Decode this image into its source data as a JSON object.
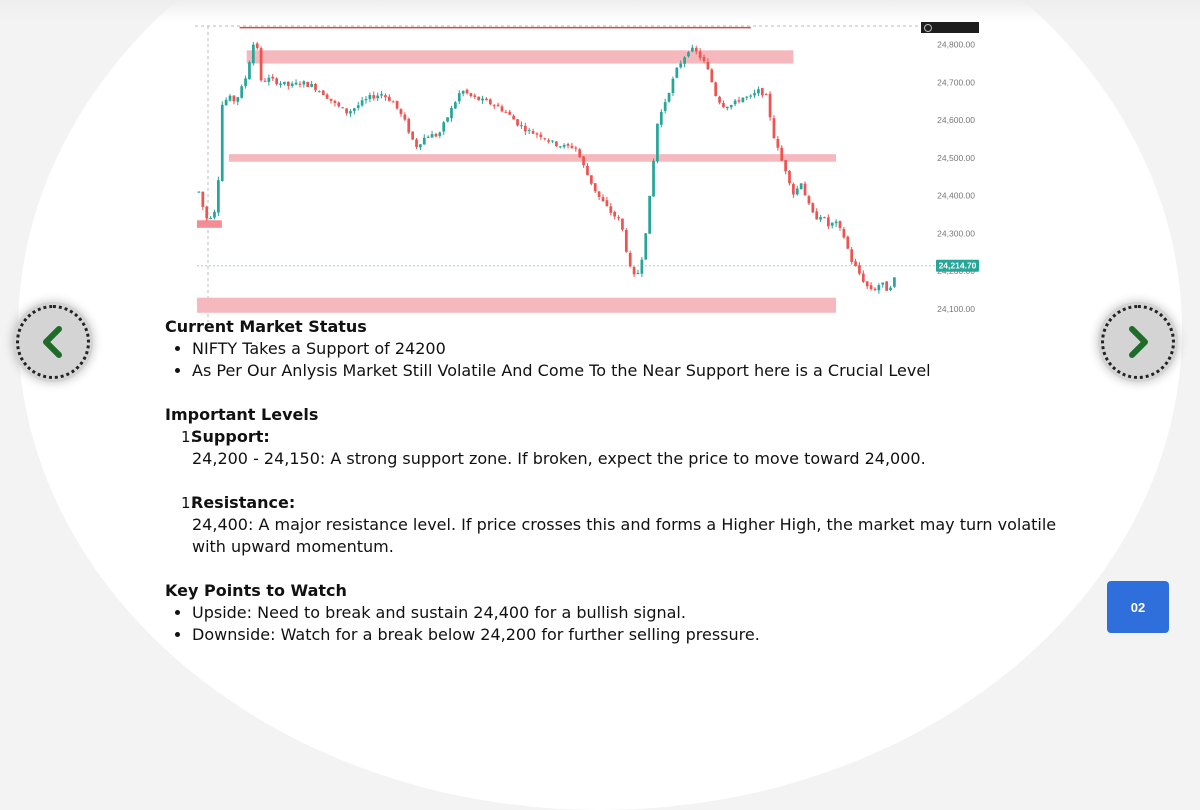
{
  "chart_data": {
    "type": "candlestick",
    "price_labels": [
      "24,800.00",
      "24,700.00",
      "24,600.00",
      "24,500.00",
      "24,400.00",
      "24,300.00",
      "24,200.00",
      "24,100.00"
    ],
    "price_ticks": [
      24800,
      24700,
      24600,
      24500,
      24400,
      24300,
      24200,
      24100
    ],
    "last_price": "24,214.70",
    "last_price_value": 24214.7,
    "ylim": [
      24055,
      24860
    ],
    "candle_count": 180,
    "close_path": [
      [
        0,
        24410
      ],
      [
        3,
        24340
      ],
      [
        6,
        24350
      ],
      [
        8,
        24380
      ],
      [
        10,
        24640
      ],
      [
        13,
        24660
      ],
      [
        16,
        24650
      ],
      [
        20,
        24700
      ],
      [
        23,
        24780
      ],
      [
        25,
        24830
      ],
      [
        27,
        24700
      ],
      [
        30,
        24710
      ],
      [
        35,
        24700
      ],
      [
        40,
        24690
      ],
      [
        45,
        24700
      ],
      [
        50,
        24690
      ],
      [
        55,
        24670
      ],
      [
        60,
        24640
      ],
      [
        65,
        24620
      ],
      [
        70,
        24640
      ],
      [
        75,
        24660
      ],
      [
        80,
        24670
      ],
      [
        85,
        24650
      ],
      [
        90,
        24600
      ],
      [
        95,
        24530
      ],
      [
        100,
        24560
      ],
      [
        105,
        24560
      ],
      [
        110,
        24620
      ],
      [
        115,
        24680
      ],
      [
        120,
        24660
      ],
      [
        125,
        24650
      ],
      [
        130,
        24640
      ],
      [
        135,
        24620
      ],
      [
        140,
        24590
      ],
      [
        145,
        24570
      ],
      [
        150,
        24560
      ],
      [
        155,
        24540
      ],
      [
        160,
        24530
      ],
      [
        165,
        24530
      ],
      [
        170,
        24460
      ],
      [
        175,
        24400
      ],
      [
        180,
        24360
      ],
      [
        185,
        24330
      ],
      [
        190,
        24180
      ],
      [
        193,
        24200
      ],
      [
        195,
        24260
      ],
      [
        198,
        24410
      ],
      [
        201,
        24590
      ],
      [
        205,
        24660
      ],
      [
        210,
        24740
      ],
      [
        215,
        24790
      ],
      [
        218,
        24780
      ],
      [
        221,
        24760
      ],
      [
        224,
        24720
      ],
      [
        227,
        24660
      ],
      [
        230,
        24640
      ],
      [
        234,
        24640
      ],
      [
        238,
        24660
      ],
      [
        242,
        24660
      ],
      [
        246,
        24680
      ],
      [
        249,
        24660
      ],
      [
        252,
        24560
      ],
      [
        255,
        24500
      ],
      [
        258,
        24460
      ],
      [
        261,
        24400
      ],
      [
        264,
        24440
      ],
      [
        267,
        24380
      ],
      [
        270,
        24340
      ],
      [
        273,
        24350
      ],
      [
        276,
        24320
      ],
      [
        279,
        24330
      ],
      [
        283,
        24290
      ],
      [
        286,
        24230
      ],
      [
        289,
        24200
      ],
      [
        293,
        24160
      ],
      [
        296,
        24150
      ],
      [
        299,
        24170
      ],
      [
        302,
        24150
      ],
      [
        305,
        24180
      ]
    ],
    "zones": [
      {
        "type": "line",
        "price": 24845,
        "x_start": 0.06,
        "x_end": 0.78,
        "color": "#d44a4a"
      },
      {
        "type": "band",
        "price_high": 24785,
        "price_low": 24750,
        "x_start": 0.07,
        "x_end": 0.84,
        "color": "#f5b8bd"
      },
      {
        "type": "band",
        "price_high": 24510,
        "price_low": 24490,
        "x_start": 0.045,
        "x_end": 0.9,
        "color": "#f5b8bd"
      },
      {
        "type": "band",
        "price_high": 24335,
        "price_low": 24315,
        "x_start": 0.0,
        "x_end": 0.035,
        "color": "#f28d96"
      },
      {
        "type": "band",
        "price_high": 24130,
        "price_low": 24090,
        "x_start": 0.0,
        "x_end": 0.9,
        "color": "#f5b8bd"
      }
    ],
    "colors": {
      "up": "#26a69a",
      "down": "#ef5350",
      "price_tag": "#26a69a",
      "axis_text": "#777777"
    }
  },
  "sections": {
    "market_status": {
      "title": "Current Market Status",
      "bullets": [
        "NIFTY Takes a Support of 24200",
        "As Per Our Anlysis Market Still Volatile And Come To the Near Support here is a Crucial Level"
      ]
    },
    "levels": {
      "title": "Important Levels",
      "support": {
        "num": "1.",
        "label": "Support:",
        "desc": "24,200 - 24,150: A strong support zone. If broken, expect the price to move toward 24,000."
      },
      "resistance": {
        "num": "1.",
        "label": "Resistance:",
        "desc": "24,400: A major resistance level. If price crosses this and forms a Higher High, the market may turn volatile with upward momentum."
      }
    },
    "key_points": {
      "title": "Key Points to Watch",
      "bullets": [
        "Upside: Need to break and sustain 24,400 for a bullish signal.",
        "Downside: Watch for a break below 24,200 for further selling pressure."
      ]
    }
  },
  "nav": {
    "prev_icon": "chevron-left-icon",
    "next_icon": "chevron-right-icon",
    "icon_color": "#1f6b2a"
  },
  "page_number": "02",
  "badge_color": "#2f6fdc"
}
